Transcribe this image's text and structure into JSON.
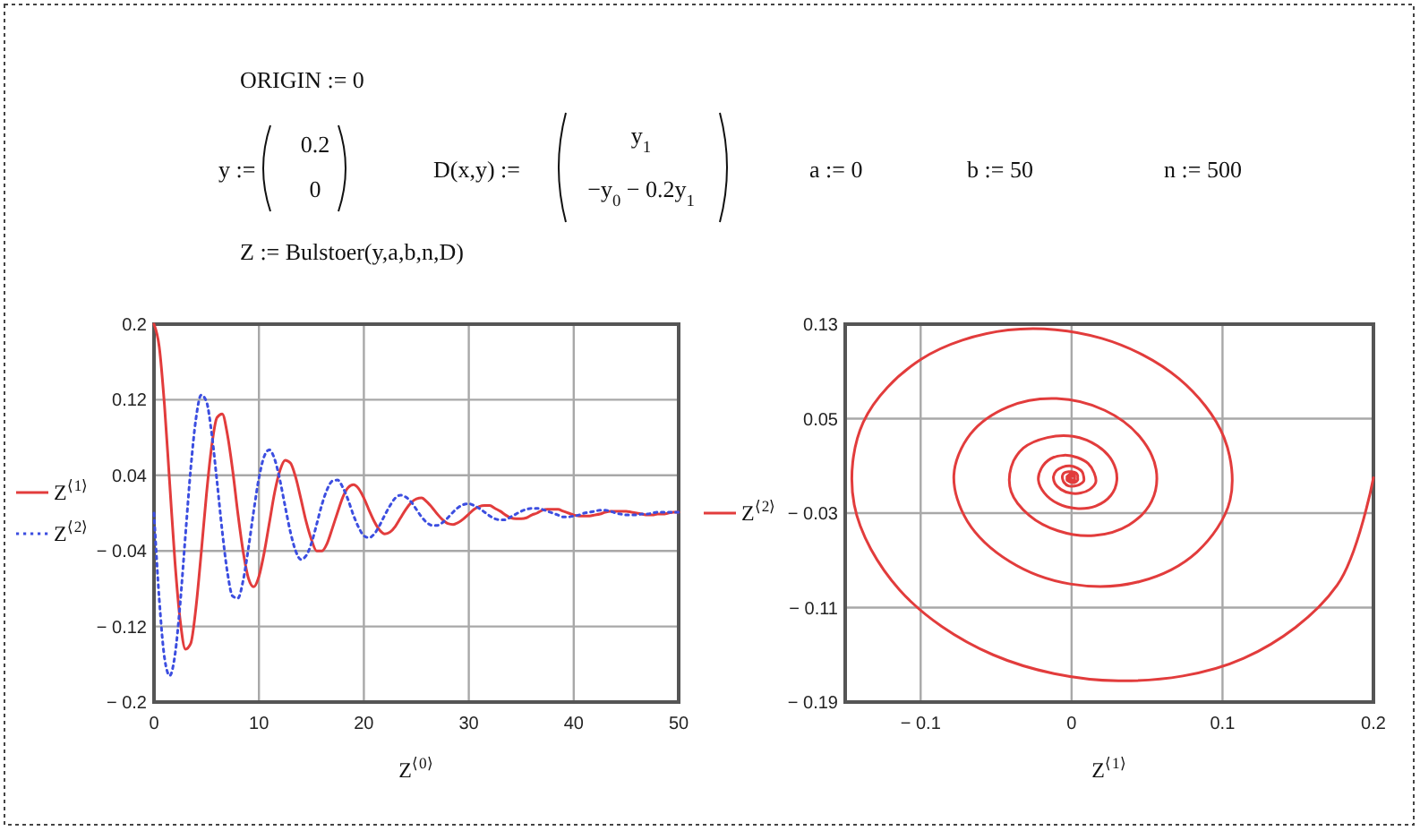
{
  "chart_data": [
    {
      "type": "other",
      "annotations": [
        "ORIGIN := 0",
        "y :=",
        "0.2",
        "0",
        "D(x,y) :=",
        "y$_{1}$",
        "−y$_{0}$ − 0.2y$_{1}$",
        "a := 0",
        "b := 50",
        "n := 500",
        "Z := Bulstoer(y,a,b,n,D)"
      ]
    },
    {
      "type": "line",
      "xlabel": "Z$^{⟨0⟩}$",
      "x": [
        0,
        0.5,
        1,
        1.5,
        2,
        2.5,
        3,
        3.5,
        4,
        4.5,
        5,
        5.5,
        6,
        6.5,
        7,
        7.5,
        8,
        8.5,
        9,
        9.5,
        10,
        10.5,
        11,
        11.5,
        12,
        12.5,
        13,
        13.5,
        14,
        14.5,
        15,
        15.5,
        16,
        16.5,
        17,
        17.5,
        18,
        18.5,
        19,
        19.5,
        20,
        20.5,
        21,
        21.5,
        22,
        22.5,
        23,
        23.5,
        24,
        24.5,
        25,
        25.5,
        26,
        26.5,
        27,
        27.5,
        28,
        28.5,
        29,
        29.5,
        30,
        30.5,
        31,
        31.5,
        32,
        32.5,
        33,
        33.5,
        34,
        34.5,
        35,
        35.5,
        36,
        36.5,
        37,
        37.5,
        38,
        38.5,
        39,
        39.5,
        40,
        40.5,
        41,
        41.5,
        42,
        42.5,
        43,
        43.5,
        44,
        44.5,
        45,
        45.5,
        46,
        46.5,
        47,
        47.5,
        48,
        48.5,
        49,
        49.5,
        50
      ],
      "series": [
        {
          "name": "Z$^{⟨1⟩}$",
          "color": "#e23c3c",
          "line_style": "solid",
          "values": [
            0.2,
            0.176,
            0.114,
            0.031,
            -0.052,
            -0.114,
            -0.144,
            -0.138,
            -0.1,
            -0.042,
            0.02,
            0.071,
            0.101,
            0.105,
            0.083,
            0.045,
            -0.001,
            -0.041,
            -0.069,
            -0.078,
            -0.067,
            -0.042,
            -0.01,
            0.022,
            0.045,
            0.056,
            0.053,
            0.038,
            0.015,
            -0.009,
            -0.028,
            -0.04,
            -0.04,
            -0.032,
            -0.016,
            0.001,
            0.017,
            0.027,
            0.03,
            0.026,
            0.016,
            0.003,
            -0.009,
            -0.018,
            -0.022,
            -0.02,
            -0.014,
            -0.005,
            0.004,
            0.011,
            0.015,
            0.016,
            0.012,
            0.006,
            -0.001,
            -0.007,
            -0.011,
            -0.012,
            -0.01,
            -0.006,
            -0.001,
            0.004,
            0.007,
            0.008,
            0.008,
            0.005,
            0.002,
            -0.002,
            -0.005,
            -0.006,
            -0.006,
            -0.005,
            -0.002,
            0,
            0.003,
            0.004,
            0.004,
            0.004,
            0.002,
            0,
            -0.002,
            -0.003,
            -0.003,
            -0.003,
            -0.002,
            -0.001,
            0.001,
            0.002,
            0.002,
            0.002,
            0.002,
            0.001,
            0,
            -0.001,
            -0.002,
            -0.002,
            -0.001,
            -0.001,
            0,
            0.001,
            0.001
          ]
        },
        {
          "name": "Z$^{⟨2⟩}$",
          "color": "#3c4ee0",
          "line_style": "dotted",
          "values": [
            0,
            -0.091,
            -0.153,
            -0.172,
            -0.15,
            -0.095,
            -0.023,
            0.047,
            0.1,
            0.125,
            0.118,
            0.084,
            0.034,
            -0.019,
            -0.063,
            -0.088,
            -0.09,
            -0.071,
            -0.037,
            0.002,
            0.037,
            0.06,
            0.067,
            0.057,
            0.035,
            0.007,
            -0.02,
            -0.04,
            -0.049,
            -0.045,
            -0.032,
            -0.012,
            0.009,
            0.025,
            0.034,
            0.035,
            0.027,
            0.014,
            -0.002,
            -0.015,
            -0.024,
            -0.026,
            -0.022,
            -0.013,
            -0.002,
            0.008,
            0.016,
            0.019,
            0.017,
            0.012,
            0.004,
            -0.004,
            -0.01,
            -0.013,
            -0.013,
            -0.01,
            -0.005,
            0.001,
            0.006,
            0.009,
            0.01,
            0.008,
            0.005,
            0.001,
            -0.003,
            -0.006,
            -0.007,
            -0.007,
            -0.004,
            -0.001,
            0.002,
            0.004,
            0.005,
            0.005,
            0.004,
            0.002,
            0,
            -0.002,
            -0.004,
            -0.004,
            -0.003,
            -0.002,
            0,
            0.001,
            0.002,
            0.003,
            0.003,
            0.002,
            0,
            -0.001,
            -0.002,
            -0.002,
            -0.002,
            -0.001,
            -0.001,
            0,
            0.001,
            0.001,
            0.001,
            0.001,
            0.001
          ]
        }
      ],
      "xlim": [
        0,
        50
      ],
      "ylim": [
        -0.2,
        0.2
      ],
      "xticks": [
        0,
        10,
        20,
        30,
        40,
        50
      ],
      "yticks": [
        0.2,
        0.12,
        0.04,
        {
          "value": -0.04,
          "label": "− 0.04"
        },
        {
          "value": -0.12,
          "label": "− 0.12"
        },
        {
          "value": -0.2,
          "label": "− 0.2"
        }
      ],
      "grid": true,
      "legend": "left"
    },
    {
      "type": "line",
      "xlabel": "Z$^{⟨1⟩}$",
      "series": [
        {
          "name": "Z$^{⟨2⟩}$",
          "color": "#e23c3c",
          "line_style": "solid",
          "x": [
            0.2,
            0.176,
            0.114,
            0.031,
            -0.052,
            -0.114,
            -0.144,
            -0.138,
            -0.1,
            -0.042,
            0.02,
            0.071,
            0.101,
            0.105,
            0.083,
            0.045,
            -0.001,
            -0.041,
            -0.069,
            -0.078,
            -0.067,
            -0.042,
            -0.01,
            0.022,
            0.045,
            0.056,
            0.053,
            0.038,
            0.015,
            -0.009,
            -0.028,
            -0.04,
            -0.04,
            -0.032,
            -0.016,
            0.001,
            0.017,
            0.027,
            0.03,
            0.026,
            0.016,
            0.003,
            -0.009,
            -0.018,
            -0.022,
            -0.02,
            -0.014,
            -0.005,
            0.004,
            0.011,
            0.015,
            0.016,
            0.012,
            0.006,
            -0.001,
            -0.007,
            -0.011,
            -0.012,
            -0.01,
            -0.006,
            -0.001,
            0.004,
            0.007,
            0.008,
            0.008,
            0.005,
            0.002,
            -0.002,
            -0.005,
            -0.006,
            -0.006,
            -0.005,
            -0.002,
            0,
            0.003,
            0.004,
            0.004,
            0.004,
            0.002,
            0,
            -0.002,
            -0.003,
            -0.003,
            -0.003,
            -0.002,
            -0.001,
            0.001,
            0.002,
            0.002,
            0.002,
            0.002,
            0.001,
            0,
            -0.001,
            -0.002,
            -0.002,
            -0.001,
            -0.001,
            0,
            0.001,
            0.001
          ],
          "values": [
            0,
            -0.091,
            -0.153,
            -0.172,
            -0.15,
            -0.095,
            -0.023,
            0.047,
            0.1,
            0.125,
            0.118,
            0.084,
            0.034,
            -0.019,
            -0.063,
            -0.088,
            -0.09,
            -0.071,
            -0.037,
            0.002,
            0.037,
            0.06,
            0.067,
            0.057,
            0.035,
            0.007,
            -0.02,
            -0.04,
            -0.049,
            -0.045,
            -0.032,
            -0.012,
            0.009,
            0.025,
            0.034,
            0.035,
            0.027,
            0.014,
            -0.002,
            -0.015,
            -0.024,
            -0.026,
            -0.022,
            -0.013,
            -0.002,
            0.008,
            0.016,
            0.019,
            0.017,
            0.012,
            0.004,
            -0.004,
            -0.01,
            -0.013,
            -0.013,
            -0.01,
            -0.005,
            0.001,
            0.006,
            0.009,
            0.01,
            0.008,
            0.005,
            0.001,
            -0.003,
            -0.006,
            -0.007,
            -0.007,
            -0.004,
            -0.001,
            0.002,
            0.004,
            0.005,
            0.005,
            0.004,
            0.002,
            0,
            -0.002,
            -0.004,
            -0.004,
            -0.003,
            -0.002,
            0,
            0.001,
            0.002,
            0.003,
            0.003,
            0.002,
            0,
            -0.001,
            -0.002,
            -0.002,
            -0.002,
            -0.001,
            -0.001,
            0,
            0.001,
            0.001,
            0.001,
            0.001,
            0.001
          ]
        }
      ],
      "xlim": [
        -0.15,
        0.2
      ],
      "ylim": [
        -0.19,
        0.13
      ],
      "xticks": [
        {
          "value": -0.1,
          "label": "− 0.1"
        },
        0,
        0.1,
        0.2
      ],
      "yticks": [
        0.13,
        0.05,
        {
          "value": -0.03,
          "label": "− 0.03"
        },
        {
          "value": -0.11,
          "label": "− 0.11"
        },
        {
          "value": -0.19,
          "label": "− 0.19"
        }
      ],
      "grid": true,
      "legend": "left"
    }
  ]
}
